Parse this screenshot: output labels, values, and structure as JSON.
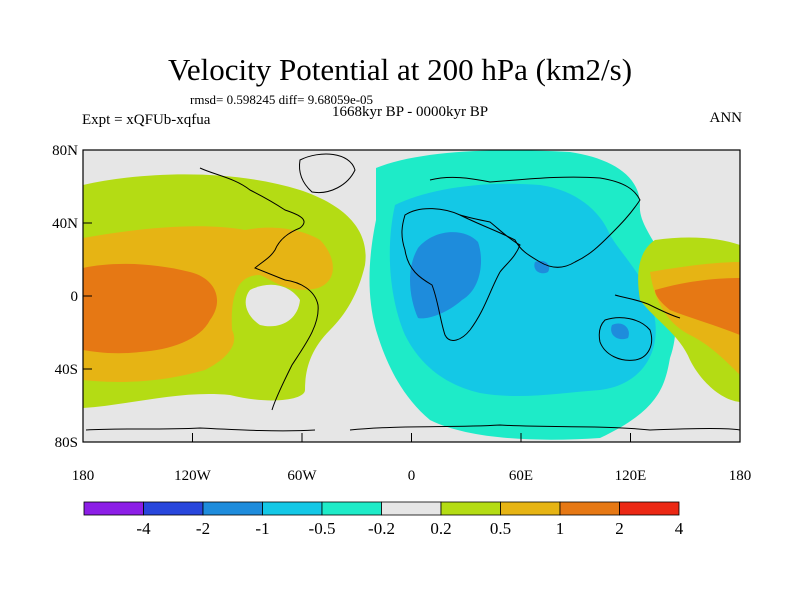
{
  "title": "Velocity Potential at 200 hPa (km2/s)",
  "stats": "rmsd= 0.598245 diff= 9.68059e-05",
  "period": "1668kyr BP - 0000kyr BP",
  "experiment": "Expt = xQFUb-xqfua",
  "season": "ANN",
  "lat_labels": [
    "80N",
    "40N",
    "0",
    "40S",
    "80S"
  ],
  "lon_labels": [
    "180",
    "120W",
    "60W",
    "0",
    "60E",
    "120E",
    "180"
  ],
  "colorbar": {
    "labels": [
      "-4",
      "-2",
      "-1",
      "-0.5",
      "-0.2",
      "0.2",
      "0.5",
      "1",
      "2",
      "4"
    ],
    "colors": [
      "#8c1ee6",
      "#2846dc",
      "#1e8cdc",
      "#14c8e6",
      "#1eebc8",
      "#e6e6e6",
      "#b4dc14",
      "#e6b414",
      "#e67814",
      "#eb2814"
    ]
  },
  "colors": {
    "neutral": "#e6e6e6",
    "teal": "#1eebc8",
    "cyan": "#14c8e6",
    "blue": "#1e8cdc",
    "lime": "#b4dc14",
    "gold": "#e6b414",
    "orange": "#e67814"
  }
}
